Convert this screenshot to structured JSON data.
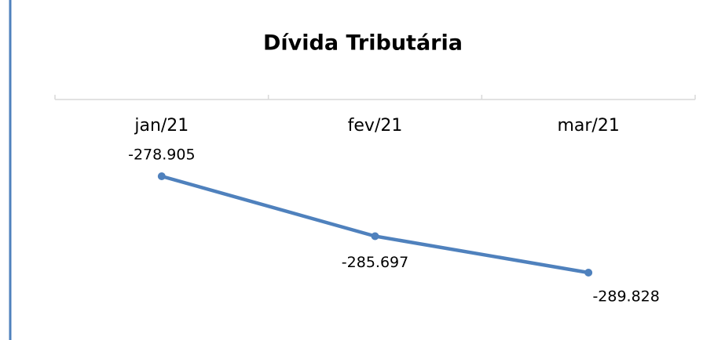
{
  "chart_data": {
    "type": "line",
    "title": "Dívida Tributária",
    "categories": [
      "jan/21",
      "fev/21",
      "mar/21"
    ],
    "series": [
      {
        "color": "#4f81bd",
        "values": [
          -278905,
          -285697,
          -289828
        ],
        "value_labels": [
          "-278.905",
          "-285.697",
          "-289.828"
        ]
      }
    ]
  }
}
